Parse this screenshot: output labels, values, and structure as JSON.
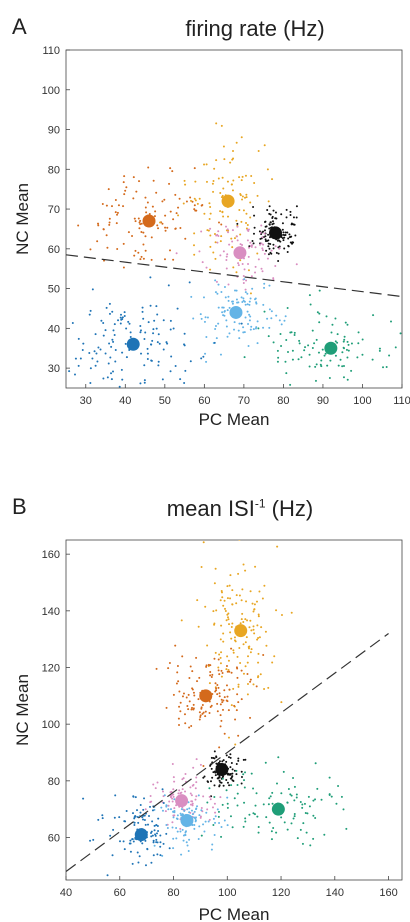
{
  "colors": {
    "orange": "#d46a1c",
    "gold": "#e8a623",
    "black": "#111111",
    "pink": "#d98ec1",
    "lightblue": "#64b4e6",
    "blue": "#1f74b6",
    "green": "#1f9e78",
    "dashed": "#333333"
  },
  "chart_data": [
    {
      "panel": "A",
      "type": "scatter",
      "title": "firing rate (Hz)",
      "xlabel": "PC Mean",
      "ylabel": "NC Mean",
      "xlim": [
        25,
        110
      ],
      "ylim": [
        25,
        110
      ],
      "xticks": [
        30,
        40,
        50,
        60,
        70,
        80,
        90,
        100,
        110
      ],
      "yticks": [
        30,
        40,
        50,
        60,
        70,
        80,
        90,
        100,
        110
      ],
      "clusters": [
        {
          "color": "orange",
          "center": [
            46,
            67
          ],
          "spread": [
            8,
            6
          ],
          "n": 110
        },
        {
          "color": "gold",
          "center": [
            66,
            72
          ],
          "spread": [
            5,
            9
          ],
          "n": 110
        },
        {
          "color": "black",
          "center": [
            78,
            64
          ],
          "spread": [
            3,
            3
          ],
          "n": 130
        },
        {
          "color": "pink",
          "center": [
            69,
            59
          ],
          "spread": [
            5,
            4
          ],
          "n": 80
        },
        {
          "color": "lightblue",
          "center": [
            68,
            44
          ],
          "spread": [
            6,
            5
          ],
          "n": 110
        },
        {
          "color": "blue",
          "center": [
            42,
            36
          ],
          "spread": [
            9,
            6
          ],
          "n": 140
        },
        {
          "color": "green",
          "center": [
            92,
            35
          ],
          "spread": [
            9,
            5
          ],
          "n": 110
        }
      ],
      "dashed_line": {
        "from": [
          25,
          58.5
        ],
        "to": [
          110,
          48
        ]
      },
      "grid": false
    },
    {
      "panel": "B",
      "type": "scatter",
      "title": "mean ISI",
      "title_sup": "-1",
      "title_unit": "(Hz)",
      "xlabel": "PC Mean",
      "ylabel": "NC Mean",
      "xlim": [
        40,
        165
      ],
      "ylim": [
        45,
        165
      ],
      "xticks": [
        40,
        60,
        80,
        100,
        120,
        140,
        160
      ],
      "yticks": [
        60,
        80,
        100,
        120,
        140,
        160
      ],
      "clusters": [
        {
          "color": "gold",
          "center": [
            105,
            133
          ],
          "spread": [
            7,
            14
          ],
          "n": 150
        },
        {
          "color": "orange",
          "center": [
            92,
            110
          ],
          "spread": [
            8,
            8
          ],
          "n": 130
        },
        {
          "color": "black",
          "center": [
            98,
            84
          ],
          "spread": [
            3,
            3
          ],
          "n": 110
        },
        {
          "color": "green",
          "center": [
            119,
            70
          ],
          "spread": [
            12,
            6
          ],
          "n": 110
        },
        {
          "color": "pink",
          "center": [
            83,
            73
          ],
          "spread": [
            6,
            5
          ],
          "n": 90
        },
        {
          "color": "lightblue",
          "center": [
            85,
            66
          ],
          "spread": [
            6,
            5
          ],
          "n": 110
        },
        {
          "color": "blue",
          "center": [
            68,
            61
          ],
          "spread": [
            7,
            6
          ],
          "n": 110
        }
      ],
      "dashed_line": {
        "from": [
          40,
          48
        ],
        "to": [
          160,
          132
        ]
      },
      "grid": false
    }
  ],
  "panels": {
    "A": {
      "letter": "A",
      "title": "firing rate (Hz)"
    },
    "B": {
      "letter": "B",
      "title_main": "mean ISI",
      "title_sup": "-1",
      "title_unit": "(Hz)"
    }
  }
}
